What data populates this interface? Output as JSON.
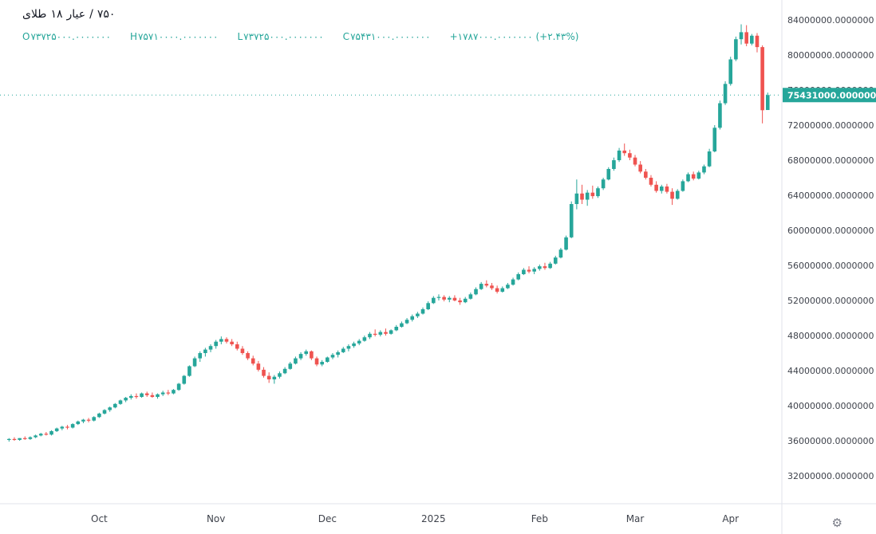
{
  "header": {
    "symbol_title": "طلای ۱۸ عیار / ۷۵۰",
    "title_parts": [
      "طلای",
      "۱۸",
      "عیار",
      "/",
      "۷۵۰"
    ],
    "legend": {
      "open_label": "O",
      "open_value": "۷۳۷۲۵۰۰۰.۰۰۰۰۰۰۰",
      "high_label": "H",
      "high_value": "۷۵۷۱۰۰۰۰.۰۰۰۰۰۰۰",
      "low_label": "L",
      "low_value": "۷۳۷۲۵۰۰۰.۰۰۰۰۰۰۰",
      "close_label": "C",
      "close_value": "۷۵۴۳۱۰۰۰.۰۰۰۰۰۰۰",
      "change_value": "+۱۷۸۷۰۰۰.۰۰۰۰۰۰۰ (+۲.۴۳%)"
    }
  },
  "footer": {
    "gear_icon": "⚙"
  },
  "chart_data": {
    "type": "candlestick",
    "title": "طلای ۱۸ عیار / ۷۵۰",
    "unit_multiplier": 1000000,
    "note_units": "candle OHLC values are in millions; multiply by unit_multiplier for axis units",
    "ohlc_legend_values": {
      "open": 73725000,
      "high": 75710000,
      "low": 73725000,
      "close": 75431000,
      "change_abs": 1787000,
      "change_pct": 2.43
    },
    "last_price": 75431000,
    "last_price_label": "75431000.0000000",
    "colors": {
      "up": "#26a69a",
      "down": "#ef5350",
      "accent": "#26a69a",
      "axis_text": "#3f434c",
      "separator": "#e0e3eb"
    },
    "y_axis": {
      "side": "right",
      "tick_labels": [
        "84000000.0000000",
        "80000000.0000000",
        "76000000.0000000",
        "72000000.0000000",
        "68000000.0000000",
        "64000000.0000000",
        "60000000.0000000",
        "56000000.0000000",
        "52000000.0000000",
        "48000000.0000000",
        "44000000.0000000",
        "40000000.0000000",
        "36000000.0000000",
        "32000000.0000000"
      ]
    },
    "x_axis": {
      "labels": [
        {
          "text": "Oct",
          "index": 17
        },
        {
          "text": "Nov",
          "index": 39
        },
        {
          "text": "Dec",
          "index": 60
        },
        {
          "text": "2025",
          "index": 80
        },
        {
          "text": "Feb",
          "index": 100
        },
        {
          "text": "Mar",
          "index": 118
        },
        {
          "text": "Apr",
          "index": 136
        }
      ]
    },
    "candles": [
      [
        36.1,
        36.3,
        35.9,
        36.2
      ],
      [
        36.2,
        36.4,
        36.0,
        36.1
      ],
      [
        36.1,
        36.3,
        36.0,
        36.3
      ],
      [
        36.3,
        36.5,
        36.1,
        36.2
      ],
      [
        36.2,
        36.5,
        36.1,
        36.4
      ],
      [
        36.4,
        36.7,
        36.3,
        36.6
      ],
      [
        36.6,
        36.9,
        36.5,
        36.8
      ],
      [
        36.8,
        37.0,
        36.6,
        36.7
      ],
      [
        36.7,
        37.2,
        36.6,
        37.1
      ],
      [
        37.1,
        37.5,
        37.0,
        37.4
      ],
      [
        37.4,
        37.7,
        37.2,
        37.6
      ],
      [
        37.6,
        37.8,
        37.3,
        37.5
      ],
      [
        37.5,
        38.0,
        37.4,
        37.9
      ],
      [
        37.9,
        38.3,
        37.8,
        38.2
      ],
      [
        38.2,
        38.5,
        38.0,
        38.4
      ],
      [
        38.4,
        38.6,
        38.1,
        38.3
      ],
      [
        38.3,
        38.8,
        38.2,
        38.7
      ],
      [
        38.7,
        39.2,
        38.6,
        39.1
      ],
      [
        39.1,
        39.6,
        39.0,
        39.5
      ],
      [
        39.5,
        39.9,
        39.3,
        39.8
      ],
      [
        39.8,
        40.3,
        39.7,
        40.2
      ],
      [
        40.2,
        40.7,
        40.1,
        40.6
      ],
      [
        40.6,
        41.0,
        40.4,
        40.9
      ],
      [
        40.9,
        41.3,
        40.7,
        41.1
      ],
      [
        41.1,
        41.4,
        40.8,
        41.0
      ],
      [
        41.0,
        41.5,
        40.9,
        41.4
      ],
      [
        41.4,
        41.6,
        41.0,
        41.2
      ],
      [
        41.2,
        41.5,
        40.9,
        41.0
      ],
      [
        41.0,
        41.4,
        40.8,
        41.3
      ],
      [
        41.3,
        41.7,
        41.1,
        41.5
      ],
      [
        41.5,
        41.8,
        41.2,
        41.4
      ],
      [
        41.4,
        41.9,
        41.3,
        41.8
      ],
      [
        41.8,
        42.6,
        41.7,
        42.5
      ],
      [
        42.5,
        43.5,
        42.4,
        43.4
      ],
      [
        43.4,
        44.6,
        43.3,
        44.5
      ],
      [
        44.5,
        45.6,
        44.4,
        45.4
      ],
      [
        45.4,
        46.2,
        45.0,
        46.0
      ],
      [
        46.0,
        46.6,
        45.6,
        46.4
      ],
      [
        46.4,
        47.0,
        46.1,
        46.8
      ],
      [
        46.8,
        47.5,
        46.5,
        47.3
      ],
      [
        47.3,
        47.9,
        47.0,
        47.6
      ],
      [
        47.6,
        47.8,
        47.1,
        47.3
      ],
      [
        47.3,
        47.6,
        46.8,
        47.0
      ],
      [
        47.0,
        47.3,
        46.3,
        46.5
      ],
      [
        46.5,
        46.8,
        45.8,
        46.0
      ],
      [
        46.0,
        46.2,
        45.2,
        45.4
      ],
      [
        45.4,
        45.7,
        44.6,
        44.8
      ],
      [
        44.8,
        45.1,
        43.9,
        44.1
      ],
      [
        44.1,
        44.4,
        43.2,
        43.4
      ],
      [
        43.4,
        43.8,
        42.6,
        43.0
      ],
      [
        43.0,
        43.5,
        42.5,
        43.3
      ],
      [
        43.3,
        43.9,
        43.1,
        43.7
      ],
      [
        43.7,
        44.4,
        43.6,
        44.2
      ],
      [
        44.2,
        45.0,
        44.1,
        44.8
      ],
      [
        44.8,
        45.6,
        44.7,
        45.4
      ],
      [
        45.4,
        46.1,
        45.2,
        45.9
      ],
      [
        45.9,
        46.4,
        45.7,
        46.2
      ],
      [
        46.2,
        46.3,
        45.2,
        45.4
      ],
      [
        45.4,
        45.6,
        44.5,
        44.7
      ],
      [
        44.7,
        45.2,
        44.5,
        45.0
      ],
      [
        45.0,
        45.6,
        44.9,
        45.5
      ],
      [
        45.5,
        46.0,
        45.3,
        45.8
      ],
      [
        45.8,
        46.3,
        45.5,
        46.1
      ],
      [
        46.1,
        46.7,
        46.0,
        46.5
      ],
      [
        46.5,
        47.0,
        46.2,
        46.8
      ],
      [
        46.8,
        47.3,
        46.6,
        47.1
      ],
      [
        47.1,
        47.6,
        46.9,
        47.4
      ],
      [
        47.4,
        48.0,
        47.3,
        47.8
      ],
      [
        47.8,
        48.4,
        47.6,
        48.2
      ],
      [
        48.2,
        48.7,
        47.9,
        48.1
      ],
      [
        48.1,
        48.6,
        47.9,
        48.4
      ],
      [
        48.4,
        48.8,
        48.0,
        48.2
      ],
      [
        48.2,
        48.7,
        48.1,
        48.6
      ],
      [
        48.6,
        49.2,
        48.5,
        49.0
      ],
      [
        49.0,
        49.6,
        48.9,
        49.4
      ],
      [
        49.4,
        50.0,
        49.3,
        49.8
      ],
      [
        49.8,
        50.4,
        49.6,
        50.2
      ],
      [
        50.2,
        50.7,
        50.0,
        50.5
      ],
      [
        50.5,
        51.2,
        50.4,
        51.0
      ],
      [
        51.0,
        51.9,
        50.9,
        51.7
      ],
      [
        51.7,
        52.5,
        51.6,
        52.3
      ],
      [
        52.3,
        52.7,
        52.0,
        52.4
      ],
      [
        52.4,
        52.6,
        51.9,
        52.1
      ],
      [
        52.1,
        52.5,
        51.8,
        52.3
      ],
      [
        52.3,
        52.6,
        51.9,
        52.0
      ],
      [
        52.0,
        52.3,
        51.5,
        51.8
      ],
      [
        51.8,
        52.4,
        51.7,
        52.2
      ],
      [
        52.2,
        52.9,
        52.1,
        52.7
      ],
      [
        52.7,
        53.5,
        52.6,
        53.3
      ],
      [
        53.3,
        54.1,
        53.2,
        53.9
      ],
      [
        53.9,
        54.3,
        53.5,
        53.7
      ],
      [
        53.7,
        54.0,
        53.2,
        53.4
      ],
      [
        53.4,
        53.7,
        52.8,
        53.0
      ],
      [
        53.0,
        53.6,
        52.9,
        53.4
      ],
      [
        53.4,
        54.0,
        53.3,
        53.8
      ],
      [
        53.8,
        54.6,
        53.7,
        54.4
      ],
      [
        54.4,
        55.2,
        54.3,
        55.0
      ],
      [
        55.0,
        55.7,
        54.9,
        55.5
      ],
      [
        55.5,
        55.9,
        55.1,
        55.3
      ],
      [
        55.3,
        55.8,
        55.0,
        55.6
      ],
      [
        55.6,
        56.1,
        55.4,
        55.9
      ],
      [
        55.9,
        56.3,
        55.5,
        55.7
      ],
      [
        55.7,
        56.4,
        55.6,
        56.2
      ],
      [
        56.2,
        57.1,
        56.1,
        56.9
      ],
      [
        56.9,
        58.0,
        56.8,
        57.8
      ],
      [
        57.8,
        59.4,
        57.7,
        59.2
      ],
      [
        59.2,
        63.3,
        59.1,
        63.0
      ],
      [
        63.0,
        65.8,
        62.4,
        64.2
      ],
      [
        64.2,
        65.2,
        63.0,
        63.5
      ],
      [
        63.5,
        64.6,
        62.8,
        64.3
      ],
      [
        64.3,
        65.1,
        63.6,
        63.9
      ],
      [
        63.9,
        65.0,
        63.7,
        64.8
      ],
      [
        64.8,
        66.0,
        64.6,
        65.8
      ],
      [
        65.8,
        67.2,
        65.7,
        67.0
      ],
      [
        67.0,
        68.3,
        66.8,
        68.0
      ],
      [
        68.0,
        69.4,
        67.8,
        69.1
      ],
      [
        69.1,
        69.9,
        68.5,
        68.8
      ],
      [
        68.8,
        69.2,
        68.0,
        68.3
      ],
      [
        68.3,
        68.6,
        67.3,
        67.5
      ],
      [
        67.5,
        67.9,
        66.5,
        66.7
      ],
      [
        66.7,
        67.0,
        65.8,
        66.0
      ],
      [
        66.0,
        66.3,
        65.0,
        65.2
      ],
      [
        65.2,
        65.6,
        64.3,
        64.5
      ],
      [
        64.5,
        65.2,
        64.2,
        65.0
      ],
      [
        65.0,
        65.3,
        64.2,
        64.4
      ],
      [
        64.4,
        64.8,
        62.9,
        63.6
      ],
      [
        63.6,
        64.7,
        63.5,
        64.5
      ],
      [
        64.5,
        65.8,
        64.4,
        65.6
      ],
      [
        65.6,
        66.6,
        65.5,
        66.4
      ],
      [
        66.4,
        66.7,
        65.7,
        65.9
      ],
      [
        65.9,
        66.8,
        65.8,
        66.6
      ],
      [
        66.6,
        67.5,
        66.4,
        67.3
      ],
      [
        67.3,
        69.3,
        67.2,
        69.0
      ],
      [
        69.0,
        72.0,
        68.9,
        71.7
      ],
      [
        71.7,
        74.8,
        71.5,
        74.5
      ],
      [
        74.5,
        77.0,
        74.3,
        76.7
      ],
      [
        76.7,
        79.8,
        76.5,
        79.5
      ],
      [
        79.5,
        82.1,
        79.3,
        81.8
      ],
      [
        81.8,
        83.5,
        81.2,
        82.6
      ],
      [
        82.6,
        83.4,
        81.0,
        81.3
      ],
      [
        81.3,
        82.4,
        81.1,
        82.2
      ],
      [
        82.2,
        82.5,
        80.3,
        80.9
      ],
      [
        80.9,
        81.1,
        72.2,
        73.7
      ],
      [
        73.725,
        75.71,
        73.725,
        75.431
      ]
    ]
  }
}
